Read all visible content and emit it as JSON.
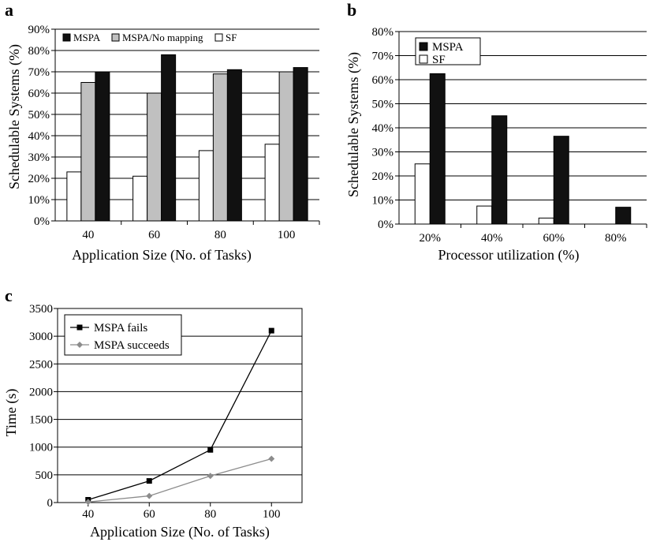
{
  "chart_data": [
    {
      "panel_label": "a",
      "type": "bar",
      "categories": [
        "40",
        "60",
        "80",
        "100"
      ],
      "category_tick_labels": [
        "40",
        "60",
        "80",
        "100"
      ],
      "series": [
        {
          "name": "SF",
          "values": [
            23,
            21,
            33,
            36
          ],
          "color": "#ffffff"
        },
        {
          "name": "MSPA/No mapping",
          "values": [
            65,
            60,
            69,
            70
          ],
          "color": "#c0c0c0"
        },
        {
          "name": "MSPA",
          "values": [
            70,
            78,
            71,
            72
          ],
          "color": "#111111"
        }
      ],
      "legend_order": [
        "MSPA",
        "MSPA/No mapping",
        "SF"
      ],
      "xlabel": "Application Size (No. of Tasks)",
      "ylabel": "Schedulable Systems (%)",
      "ylim": [
        0,
        90
      ],
      "yticks": [
        0,
        10,
        20,
        30,
        40,
        50,
        60,
        70,
        80,
        90
      ],
      "ytick_labels": [
        "0%",
        "10%",
        "20%",
        "30%",
        "40%",
        "50%",
        "60%",
        "70%",
        "80%",
        "90%"
      ],
      "grid": true,
      "legend_position": "top"
    },
    {
      "panel_label": "b",
      "type": "bar",
      "categories": [
        "20%",
        "40%",
        "60%",
        "80%"
      ],
      "category_tick_labels": [
        "20%",
        "40%",
        "60%",
        "80%"
      ],
      "series": [
        {
          "name": "SF",
          "values": [
            25,
            7.5,
            2.5,
            0
          ],
          "color": "#ffffff"
        },
        {
          "name": "MSPA",
          "values": [
            62.5,
            45,
            36.5,
            7
          ],
          "color": "#111111"
        }
      ],
      "legend_order": [
        "MSPA",
        "SF"
      ],
      "xlabel": "Processor utilization (%)",
      "ylabel": "Schedulable Systems (%)",
      "ylim": [
        0,
        80
      ],
      "yticks": [
        0,
        10,
        20,
        30,
        40,
        50,
        60,
        70,
        80
      ],
      "ytick_labels": [
        "0%",
        "10%",
        "20%",
        "30%",
        "40%",
        "50%",
        "60%",
        "70%",
        "80%"
      ],
      "grid": true,
      "legend_position": "top-left"
    },
    {
      "panel_label": "c",
      "type": "line",
      "x": [
        40,
        60,
        80,
        100
      ],
      "xtick_labels": [
        "40",
        "60",
        "80",
        "100"
      ],
      "series": [
        {
          "name": "MSPA fails",
          "values": [
            50,
            390,
            950,
            3100
          ],
          "color": "#000000",
          "marker": "square"
        },
        {
          "name": "MSPA succeeds",
          "values": [
            10,
            120,
            480,
            790
          ],
          "color": "#8c8c8c",
          "marker": "diamond"
        }
      ],
      "xlabel": "Application Size (No. of Tasks)",
      "ylabel": "Time (s)",
      "xlim": [
        30,
        110
      ],
      "ylim": [
        0,
        3500
      ],
      "yticks": [
        0,
        500,
        1000,
        1500,
        2000,
        2500,
        3000,
        3500
      ],
      "ytick_labels": [
        "0",
        "500",
        "1000",
        "1500",
        "2000",
        "2500",
        "3000",
        "3500"
      ],
      "grid": true,
      "legend_position": "top-left"
    }
  ]
}
